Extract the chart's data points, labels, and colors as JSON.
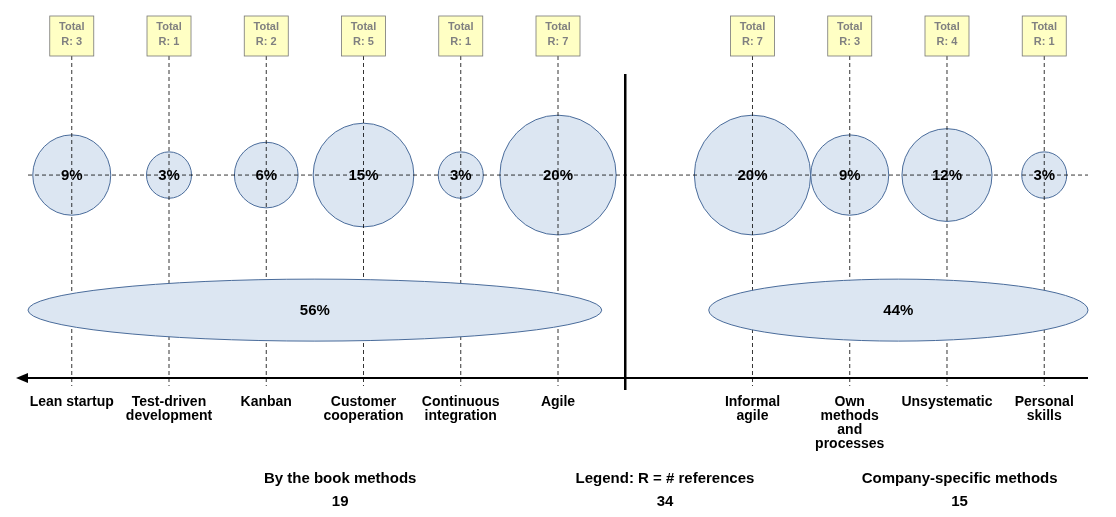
{
  "chart_data": {
    "type": "other",
    "categories": [
      "Lean startup",
      "Test-driven development",
      "Kanban",
      "Customer cooperation",
      "Continuous integration",
      "Agile",
      null,
      "Informal agile",
      "Own methods and processes",
      "Unsystematic",
      "Personal skills"
    ],
    "values": [
      9,
      3,
      6,
      15,
      3,
      20,
      null,
      20,
      9,
      12,
      3
    ],
    "color": "#dce6f2",
    "value_labels": [
      "9%",
      "3%",
      "6%",
      "15%",
      "3%",
      "20%",
      null,
      "20%",
      "9%",
      "12%",
      "3%"
    ],
    "totals": [
      "Total R: 3",
      "Total R: 1",
      "Total R: 2",
      "Total R: 5",
      "Total R: 1",
      "Total R: 7",
      null,
      "Total R: 7",
      "Total R: 3",
      "Total R: 4",
      "Total R: 1"
    ],
    "annotations": [
      "56%",
      "44%",
      "By the book methods",
      "19",
      "Legend: R = # references",
      "34",
      "Company-specific methods",
      "15"
    ]
  }
}
